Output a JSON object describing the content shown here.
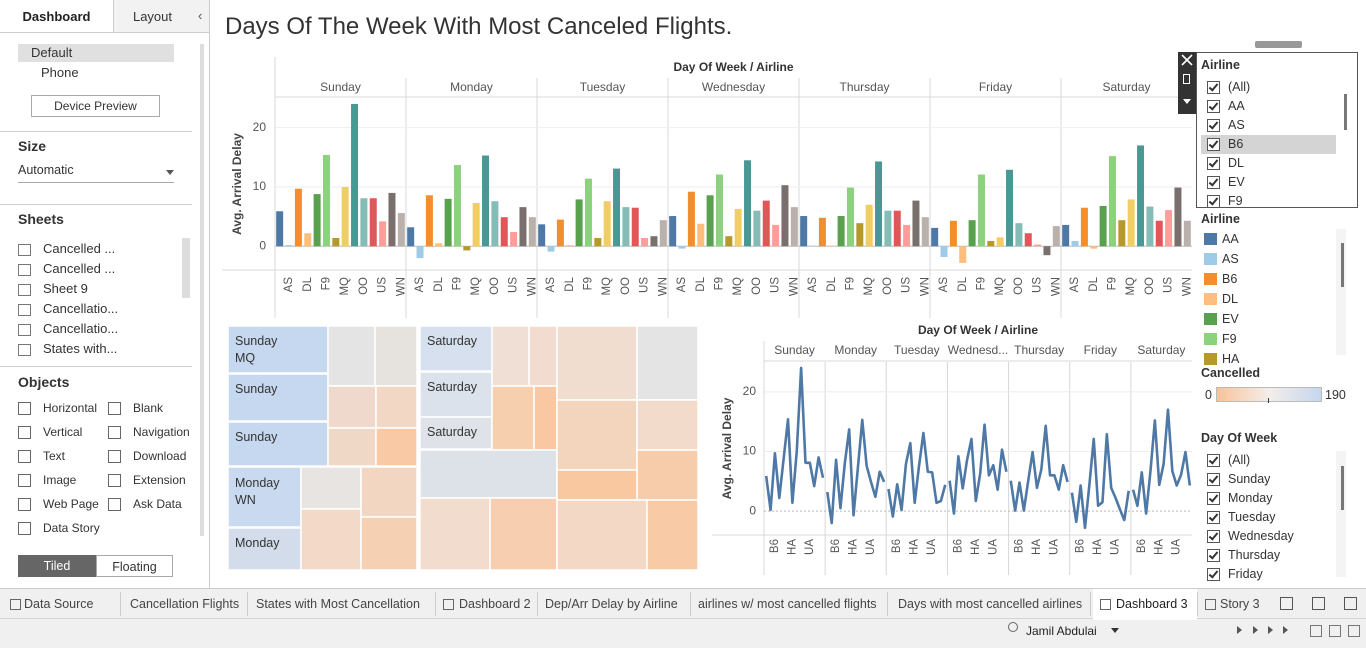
{
  "sidebar": {
    "tabs": [
      "Dashboard",
      "Layout"
    ],
    "active_tab": 0,
    "devices": [
      "Default",
      "Phone"
    ],
    "active_device": 0,
    "device_preview": "Device Preview",
    "size_title": "Size",
    "size_value": "Automatic",
    "sheets_title": "Sheets",
    "sheets": [
      "Cancelled ...",
      "Cancelled ...",
      "Sheet 9",
      "Cancellatio...",
      "Cancellatio...",
      "States with..."
    ],
    "objects_title": "Objects",
    "objects": [
      "Horizontal",
      "Blank",
      "Vertical",
      "Navigation",
      "Text",
      "Download",
      "Image",
      "Extension",
      "Web Page",
      "Ask Data",
      "Data Story"
    ],
    "layout_modes": [
      "Tiled",
      "Floating"
    ],
    "active_mode": 0
  },
  "dashboard_title": "Days Of The Week With Most Canceled Flights.",
  "chart_data": [
    {
      "type": "bar",
      "title": "Day Of Week / Airline",
      "y_label": "Avg. Arrival Delay",
      "facets": [
        "Sunday",
        "Monday",
        "Tuesday",
        "Wednesday",
        "Thursday",
        "Friday",
        "Saturday"
      ],
      "series": [
        {
          "name": "AA",
          "color": "#4e79a7",
          "values": [
            5.9,
            3.2,
            3.7,
            5.1,
            5.1,
            3.1,
            3.6
          ]
        },
        {
          "name": "AS",
          "color": "#a0cbe8",
          "values": [
            0.2,
            -2,
            -0.9,
            -0.4,
            0.1,
            -1.8,
            0.9
          ]
        },
        {
          "name": "B6",
          "color": "#f28e2b",
          "values": [
            9.7,
            8.6,
            4.5,
            9.2,
            4.8,
            4.3,
            6.5
          ]
        },
        {
          "name": "DL",
          "color": "#ffbe7d",
          "values": [
            2.2,
            0.5,
            0.2,
            3.8,
            0.1,
            -2.8,
            -0.4
          ]
        },
        {
          "name": "EV",
          "color": "#59a14f",
          "values": [
            8.8,
            8,
            7.9,
            8.6,
            5.1,
            4.4,
            6.8
          ]
        },
        {
          "name": "F9",
          "color": "#8cd17d",
          "values": [
            15.4,
            13.7,
            11.4,
            12.1,
            9.9,
            12.1,
            15.2
          ]
        },
        {
          "name": "HA",
          "color": "#b6992d",
          "values": [
            1.4,
            -0.7,
            1.4,
            1.7,
            3.9,
            0.9,
            4.4
          ]
        },
        {
          "name": "MQ",
          "color": "#f1ce63",
          "values": [
            10,
            7.3,
            7.6,
            6.3,
            7,
            1.5,
            7.9
          ]
        },
        {
          "name": null,
          "color": "#499894",
          "values": [
            24,
            15.3,
            13.1,
            14.5,
            14.3,
            12.9,
            17
          ]
        },
        {
          "name": "OO",
          "color": "#86bcb6",
          "values": [
            8.1,
            7.6,
            6.6,
            6,
            6,
            3.9,
            6.7
          ]
        },
        {
          "name": "UA",
          "color": "#e15759",
          "values": [
            8.1,
            4.9,
            6.5,
            7.7,
            6,
            2.2,
            4.3
          ]
        },
        {
          "name": "US",
          "color": "#ff9d9a",
          "values": [
            4.2,
            2.4,
            1.4,
            3.6,
            3.6,
            0.3,
            6.1
          ]
        },
        {
          "name": null,
          "color": "#79706e",
          "values": [
            9,
            6.6,
            1.7,
            10.3,
            7.7,
            -1.5,
            9.9
          ]
        },
        {
          "name": "WN",
          "color": "#bab0ac",
          "values": [
            5.6,
            4.9,
            4.4,
            6.6,
            4.9,
            3.4,
            4.3
          ]
        }
      ],
      "ylim": [
        -4,
        25
      ],
      "yticks": [
        0,
        10,
        20
      ],
      "grid": true
    },
    {
      "type": "line",
      "title": "Day Of Week / Airline",
      "y_label": "Avg. Arrival Delay",
      "facets": [
        "Sunday",
        "Monday",
        "Tuesday",
        "Wednesd...",
        "Thursday",
        "Friday",
        "Saturday"
      ],
      "categories": [
        null,
        null,
        "B6",
        null,
        null,
        null,
        "HA",
        null,
        null,
        null,
        "UA",
        null,
        null,
        null
      ],
      "color": "#4e79a7",
      "values": [
        [
          5.9,
          0.2,
          9.7,
          2.2,
          8.8,
          15.4,
          1.4,
          10,
          24,
          8.1,
          8.1,
          4.2,
          9,
          5.6
        ],
        [
          3.2,
          -2,
          8.6,
          0.5,
          8,
          13.7,
          -0.7,
          7.3,
          15.3,
          7.6,
          4.9,
          2.4,
          6.6,
          4.9
        ],
        [
          3.7,
          -0.9,
          4.5,
          0.2,
          7.9,
          11.4,
          1.4,
          7.6,
          13.1,
          6.6,
          6.5,
          1.4,
          1.7,
          4.4
        ],
        [
          5.1,
          -0.4,
          9.2,
          3.8,
          8.6,
          12.1,
          1.7,
          6.3,
          14.5,
          6,
          7.7,
          3.6,
          10.3,
          6.6
        ],
        [
          5.1,
          0.1,
          4.8,
          0.1,
          5.1,
          9.9,
          3.9,
          7,
          14.3,
          6,
          6,
          3.6,
          7.7,
          4.9
        ],
        [
          3.1,
          -1.8,
          4.3,
          -2.8,
          4.4,
          12.1,
          0.9,
          1.5,
          12.9,
          3.9,
          2.2,
          0.3,
          -1.5,
          3.4
        ],
        [
          3.6,
          0.9,
          6.5,
          -0.4,
          6.8,
          15.2,
          4.4,
          7.9,
          17,
          6.7,
          4.3,
          6.1,
          9.9,
          4.3
        ]
      ],
      "ylim": [
        -4,
        25
      ],
      "yticks": [
        0,
        10,
        20
      ],
      "grid": true
    }
  ],
  "treemap": {
    "tiles": [
      "Sunday\nMQ",
      "Sunday",
      "Sunday",
      "Monday\nWN",
      "Monday",
      "Saturday",
      "Saturday",
      "Saturday"
    ]
  },
  "airline_filter": {
    "title": "Airline",
    "items": [
      "(All)",
      "AA",
      "AS",
      "B6",
      "DL",
      "EV",
      "F9"
    ],
    "highlighted_item": 3
  },
  "airline_legend": {
    "title": "Airline"
  },
  "cancelled_legend": {
    "title": "Cancelled",
    "min": 0,
    "max": 190
  },
  "day_filter": {
    "title": "Day Of Week",
    "items": [
      "(All)",
      "Sunday",
      "Monday",
      "Tuesday",
      "Wednesday",
      "Thursday",
      "Friday"
    ]
  },
  "tabs": [
    "Data Source",
    "Cancellation Flights",
    "States with Most Cancellation",
    "Dashboard 2",
    "Dep/Arr Delay by Airline",
    "airlines w/ most cancelled flights",
    "Days with most cancelled airlines",
    "Dashboard 3",
    "Story 3"
  ],
  "active_tab": 7,
  "user": "Jamil Abdulai"
}
